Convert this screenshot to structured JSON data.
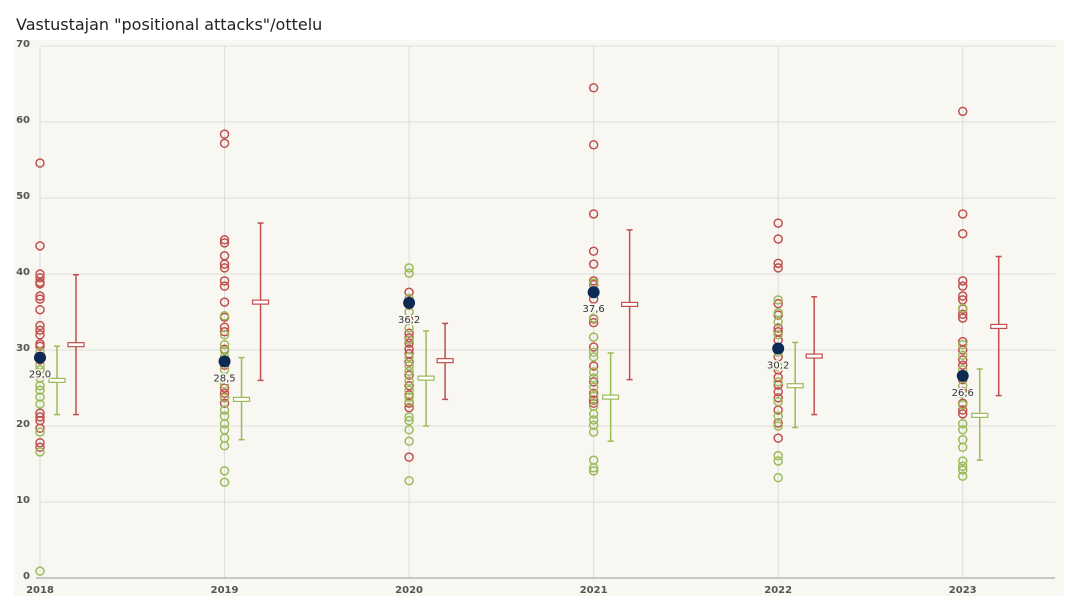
{
  "chart_data": {
    "type": "scatter",
    "title": "Vastustajan \"positional attacks\"/ottelu",
    "x": [
      2018,
      2019,
      2020,
      2021,
      2022,
      2023
    ],
    "xlim": [
      2018,
      2023.5
    ],
    "xticks": [
      2018,
      2019,
      2020,
      2021,
      2022,
      2023
    ],
    "ylim": [
      0,
      70
    ],
    "yticks": [
      0,
      10,
      20,
      30,
      40,
      50,
      60,
      70
    ],
    "grid": true,
    "series": [
      {
        "color": "#c0504d",
        "values": [
          [
            54.6,
            43.7,
            40.0,
            39.5,
            38.9,
            38.7,
            37.1,
            36.7,
            35.3,
            33.2,
            32.6,
            32.0,
            30.8,
            30.5,
            28.7,
            21.7,
            21.2,
            20.7,
            19.7,
            17.8,
            17.2
          ],
          [
            58.4,
            57.2,
            44.5,
            44.1,
            42.4,
            41.3,
            40.8,
            39.1,
            38.4,
            36.3,
            34.3,
            33.0,
            32.4,
            30.1,
            28.0,
            25.0,
            24.3,
            23.8,
            23.0
          ],
          [
            37.6,
            35.9,
            33.9,
            32.2,
            31.6,
            30.9,
            30.1,
            29.5,
            28.4,
            26.7,
            25.3,
            24.1,
            23.0,
            22.4,
            15.9
          ],
          [
            64.5,
            57.0,
            47.9,
            43.0,
            41.3,
            39.1,
            38.6,
            36.7,
            34.1,
            33.6,
            30.4,
            27.9,
            25.8,
            24.3,
            23.4,
            23.0
          ],
          [
            46.7,
            44.6,
            41.4,
            40.8,
            36.1,
            34.6,
            32.9,
            32.4,
            31.3,
            29.1,
            27.4,
            26.4,
            25.4,
            24.5,
            23.7,
            22.1,
            20.4,
            18.4
          ],
          [
            61.4,
            47.9,
            45.3,
            39.1,
            38.4,
            37.1,
            36.6,
            35.4,
            34.7,
            34.2,
            31.1,
            30.0,
            28.7,
            28.0,
            26.1,
            24.5,
            23.0,
            22.1,
            21.6
          ]
        ]
      },
      {
        "color": "#9bbb59",
        "values": [
          [
            29.7,
            28.0,
            27.4,
            26.3,
            25.3,
            24.7,
            23.8,
            22.9,
            19.2,
            16.6,
            0.9
          ],
          [
            34.5,
            32.0,
            30.7,
            29.9,
            29.1,
            27.4,
            25.5,
            23.7,
            22.1,
            21.3,
            20.3,
            19.5,
            18.4,
            17.4,
            14.1,
            12.6
          ],
          [
            40.8,
            40.1,
            36.8,
            35.0,
            32.9,
            31.3,
            29.1,
            27.9,
            27.2,
            25.9,
            24.7,
            23.8,
            23.2,
            21.2,
            20.7,
            19.5,
            18.0,
            12.8
          ],
          [
            38.8,
            34.2,
            31.7,
            29.7,
            29.1,
            27.1,
            26.3,
            25.1,
            23.9,
            22.6,
            21.6,
            20.8,
            20.1,
            19.2,
            15.5,
            14.5,
            14.1
          ],
          [
            36.6,
            34.9,
            33.7,
            32.0,
            29.7,
            27.8,
            25.8,
            23.2,
            21.3,
            20.0,
            16.1,
            15.4,
            13.2
          ],
          [
            35.5,
            30.7,
            29.3,
            27.4,
            26.4,
            25.3,
            24.2,
            22.8,
            20.3,
            19.5,
            18.2,
            17.2,
            15.4,
            14.7,
            14.2,
            13.4
          ]
        ]
      }
    ],
    "means": {
      "color": "#0d2a55",
      "values": [
        29.0,
        28.5,
        36.2,
        37.6,
        30.2,
        26.6
      ],
      "value_labels": [
        "29,0",
        "28,5",
        "36,2",
        "37,6",
        "30,2",
        "26,6"
      ]
    },
    "error_bars": [
      {
        "color": "#9bbb59",
        "values": [
          26.0,
          23.5,
          26.3,
          23.8,
          25.3,
          21.4
        ],
        "low": [
          21.5,
          18.2,
          20.0,
          18.0,
          19.8,
          15.5
        ],
        "high": [
          30.5,
          29.0,
          32.5,
          29.6,
          31.0,
          27.5
        ]
      },
      {
        "color": "#c0504d",
        "values": [
          30.7,
          36.3,
          28.6,
          36.0,
          29.2,
          33.1
        ],
        "low": [
          21.5,
          26.0,
          23.5,
          26.1,
          21.5,
          24.0
        ],
        "high": [
          39.9,
          46.7,
          33.5,
          45.8,
          37.0,
          42.3
        ]
      }
    ]
  }
}
